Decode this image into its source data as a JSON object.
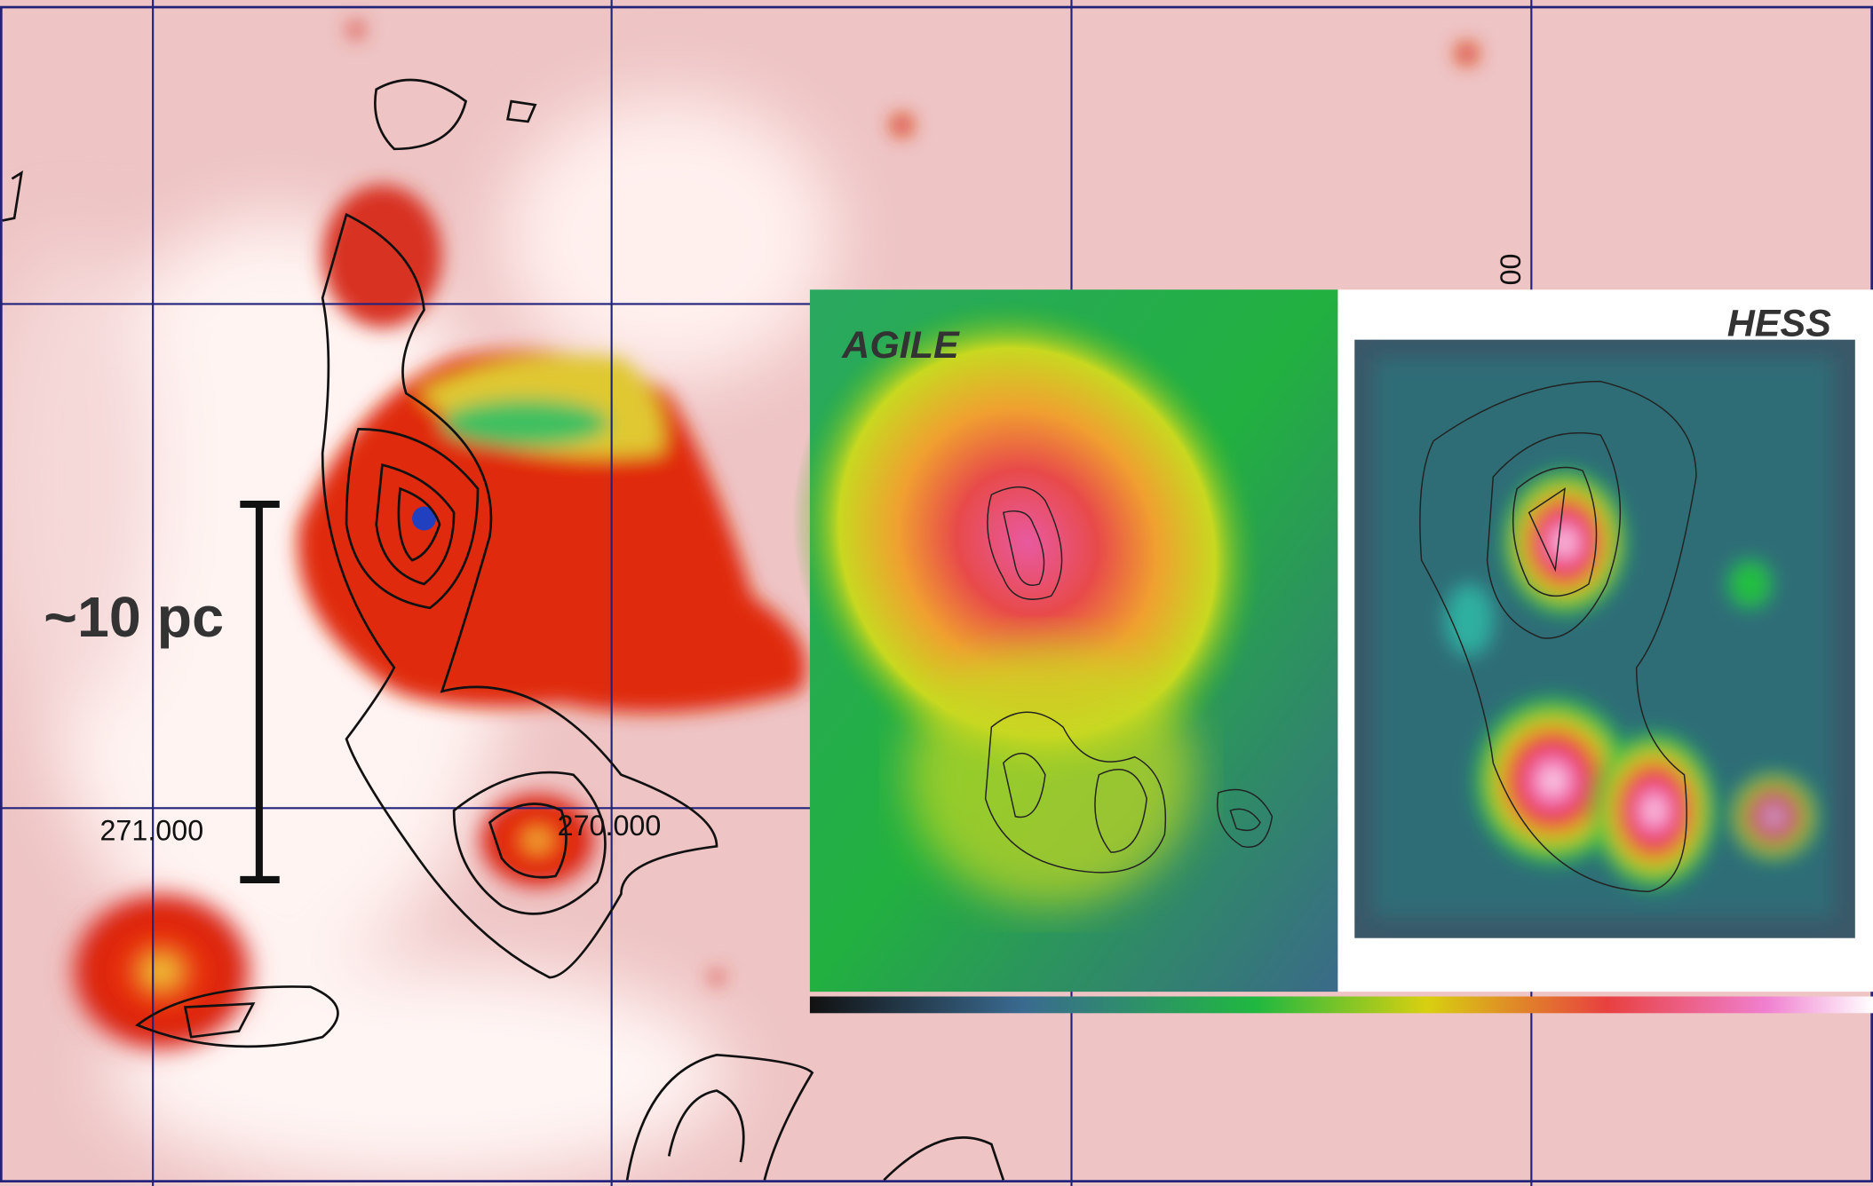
{
  "main_map": {
    "scale_label": "~10 pc",
    "coordinate_labels": [
      "271.000",
      "270.000",
      "00"
    ]
  },
  "insets": [
    {
      "label": "AGILE"
    },
    {
      "label": "HESS"
    }
  ]
}
